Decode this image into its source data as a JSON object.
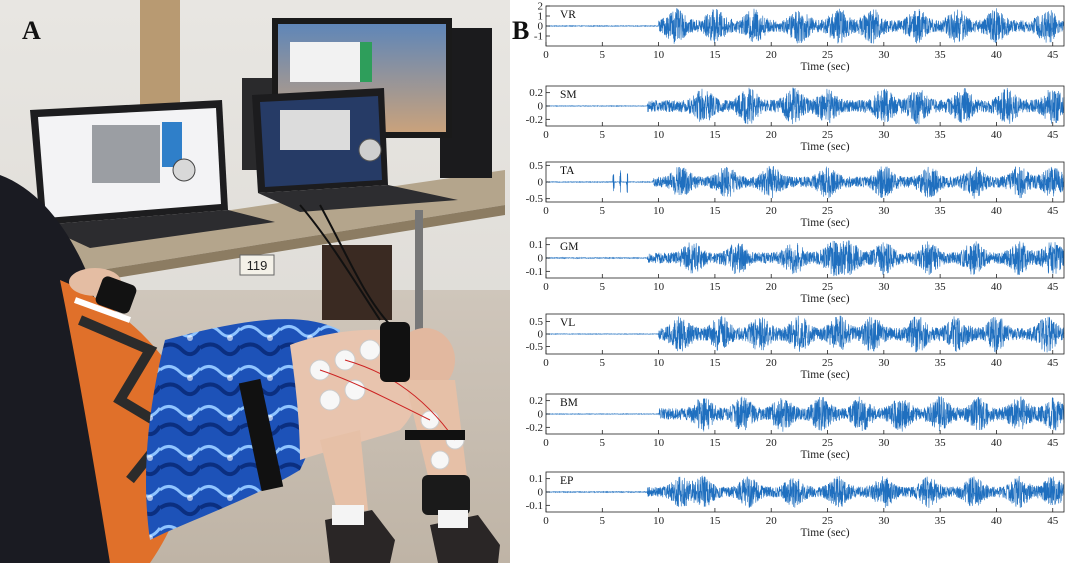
{
  "panel_a": {
    "label": "A",
    "room_number": "119"
  },
  "panel_b": {
    "label": "B"
  },
  "colors": {
    "signal": "#1f6fbf",
    "axis": "#222222"
  },
  "chart_data": [
    {
      "type": "line",
      "channel": "VR",
      "xlabel": "Time (sec)",
      "xlim": [
        0,
        46
      ],
      "ylim": [
        -2,
        2
      ],
      "yticks": [
        -1,
        0,
        1,
        2
      ],
      "ytick_labels": [
        "-1",
        "0",
        "1",
        "2"
      ],
      "xticks": [
        0,
        5,
        10,
        15,
        20,
        25,
        30,
        35,
        40,
        45
      ],
      "onset_sec": 10,
      "baseline_amplitude": 0.03,
      "peak_amplitude": 1.8,
      "bursts_sec": [
        11.5,
        15,
        18.5,
        22.5,
        26,
        29,
        33,
        36.5,
        40,
        44.5
      ],
      "grid": false
    },
    {
      "type": "line",
      "channel": "SM",
      "xlabel": "Time (sec)",
      "xlim": [
        0,
        46
      ],
      "ylim": [
        -0.3,
        0.3
      ],
      "yticks": [
        -0.2,
        0,
        0.2
      ],
      "ytick_labels": [
        "-0.2",
        "0",
        "0.2"
      ],
      "xticks": [
        0,
        5,
        10,
        15,
        20,
        25,
        30,
        35,
        40,
        45
      ],
      "onset_sec": 9,
      "baseline_amplitude": 0.004,
      "peak_amplitude": 0.28,
      "bursts_sec": [
        14,
        18,
        22,
        25,
        30,
        33,
        37,
        41,
        45
      ],
      "grid": false
    },
    {
      "type": "line",
      "channel": "TA",
      "xlabel": "Time (sec)",
      "xlim": [
        0,
        46
      ],
      "ylim": [
        -0.6,
        0.6
      ],
      "yticks": [
        -0.5,
        0,
        0.5
      ],
      "ytick_labels": [
        "-0.5",
        "0",
        "0.5"
      ],
      "xticks": [
        0,
        5,
        10,
        15,
        20,
        25,
        30,
        35,
        40,
        45
      ],
      "onset_sec": 9.5,
      "baseline_amplitude": 0.01,
      "peak_amplitude": 0.5,
      "spikes_sec": [
        6,
        6.6,
        7.2
      ],
      "bursts_sec": [
        12,
        16,
        20,
        25,
        30,
        34,
        38,
        42,
        45
      ],
      "grid": false
    },
    {
      "type": "line",
      "channel": "GM",
      "xlabel": "Time (sec)",
      "xlim": [
        0,
        46
      ],
      "ylim": [
        -0.15,
        0.15
      ],
      "yticks": [
        -0.1,
        0,
        0.1
      ],
      "ytick_labels": [
        "-0.1",
        "0",
        "0.1"
      ],
      "xticks": [
        0,
        5,
        10,
        15,
        20,
        25,
        30,
        35,
        40,
        45
      ],
      "onset_sec": 9,
      "baseline_amplitude": 0.003,
      "peak_amplitude": 0.13,
      "bursts_sec": [
        13,
        17,
        22,
        25.5,
        27,
        30,
        34,
        38,
        42,
        45
      ],
      "grid": false
    },
    {
      "type": "line",
      "channel": "VL",
      "xlabel": "Time (sec)",
      "xlim": [
        0,
        46
      ],
      "ylim": [
        -0.8,
        0.8
      ],
      "yticks": [
        -0.5,
        0,
        0.5
      ],
      "ytick_labels": [
        "-0.5",
        "0",
        "0.5"
      ],
      "xticks": [
        0,
        5,
        10,
        15,
        20,
        25,
        30,
        35,
        40,
        45
      ],
      "onset_sec": 10,
      "baseline_amplitude": 0.01,
      "peak_amplitude": 0.75,
      "bursts_sec": [
        12,
        15.5,
        19,
        22.5,
        26,
        29,
        33,
        36.5,
        40,
        44.5
      ],
      "grid": false
    },
    {
      "type": "line",
      "channel": "BM",
      "xlabel": "Time (sec)",
      "xlim": [
        0,
        46
      ],
      "ylim": [
        -0.3,
        0.3
      ],
      "yticks": [
        -0.2,
        0,
        0.2
      ],
      "ytick_labels": [
        "-0.2",
        "0",
        "0.2"
      ],
      "xticks": [
        0,
        5,
        10,
        15,
        20,
        25,
        30,
        35,
        40,
        45
      ],
      "onset_sec": 10,
      "baseline_amplitude": 0.004,
      "peak_amplitude": 0.27,
      "bursts_sec": [
        14,
        17.5,
        21,
        24.5,
        28,
        31.5,
        35,
        38.5,
        42,
        45
      ],
      "grid": false
    },
    {
      "type": "line",
      "channel": "EP",
      "xlabel": "Time (sec)",
      "xlim": [
        0,
        46
      ],
      "ylim": [
        -0.15,
        0.15
      ],
      "yticks": [
        -0.1,
        0,
        0.1
      ],
      "ytick_labels": [
        "-0.1",
        "0",
        "0.1"
      ],
      "xticks": [
        0,
        5,
        10,
        15,
        20,
        25,
        30,
        35,
        40,
        45
      ],
      "onset_sec": 9,
      "baseline_amplitude": 0.003,
      "peak_amplitude": 0.12,
      "bursts_sec": [
        12,
        14,
        18,
        22,
        26,
        30,
        34,
        38,
        42,
        45
      ],
      "grid": false
    }
  ]
}
